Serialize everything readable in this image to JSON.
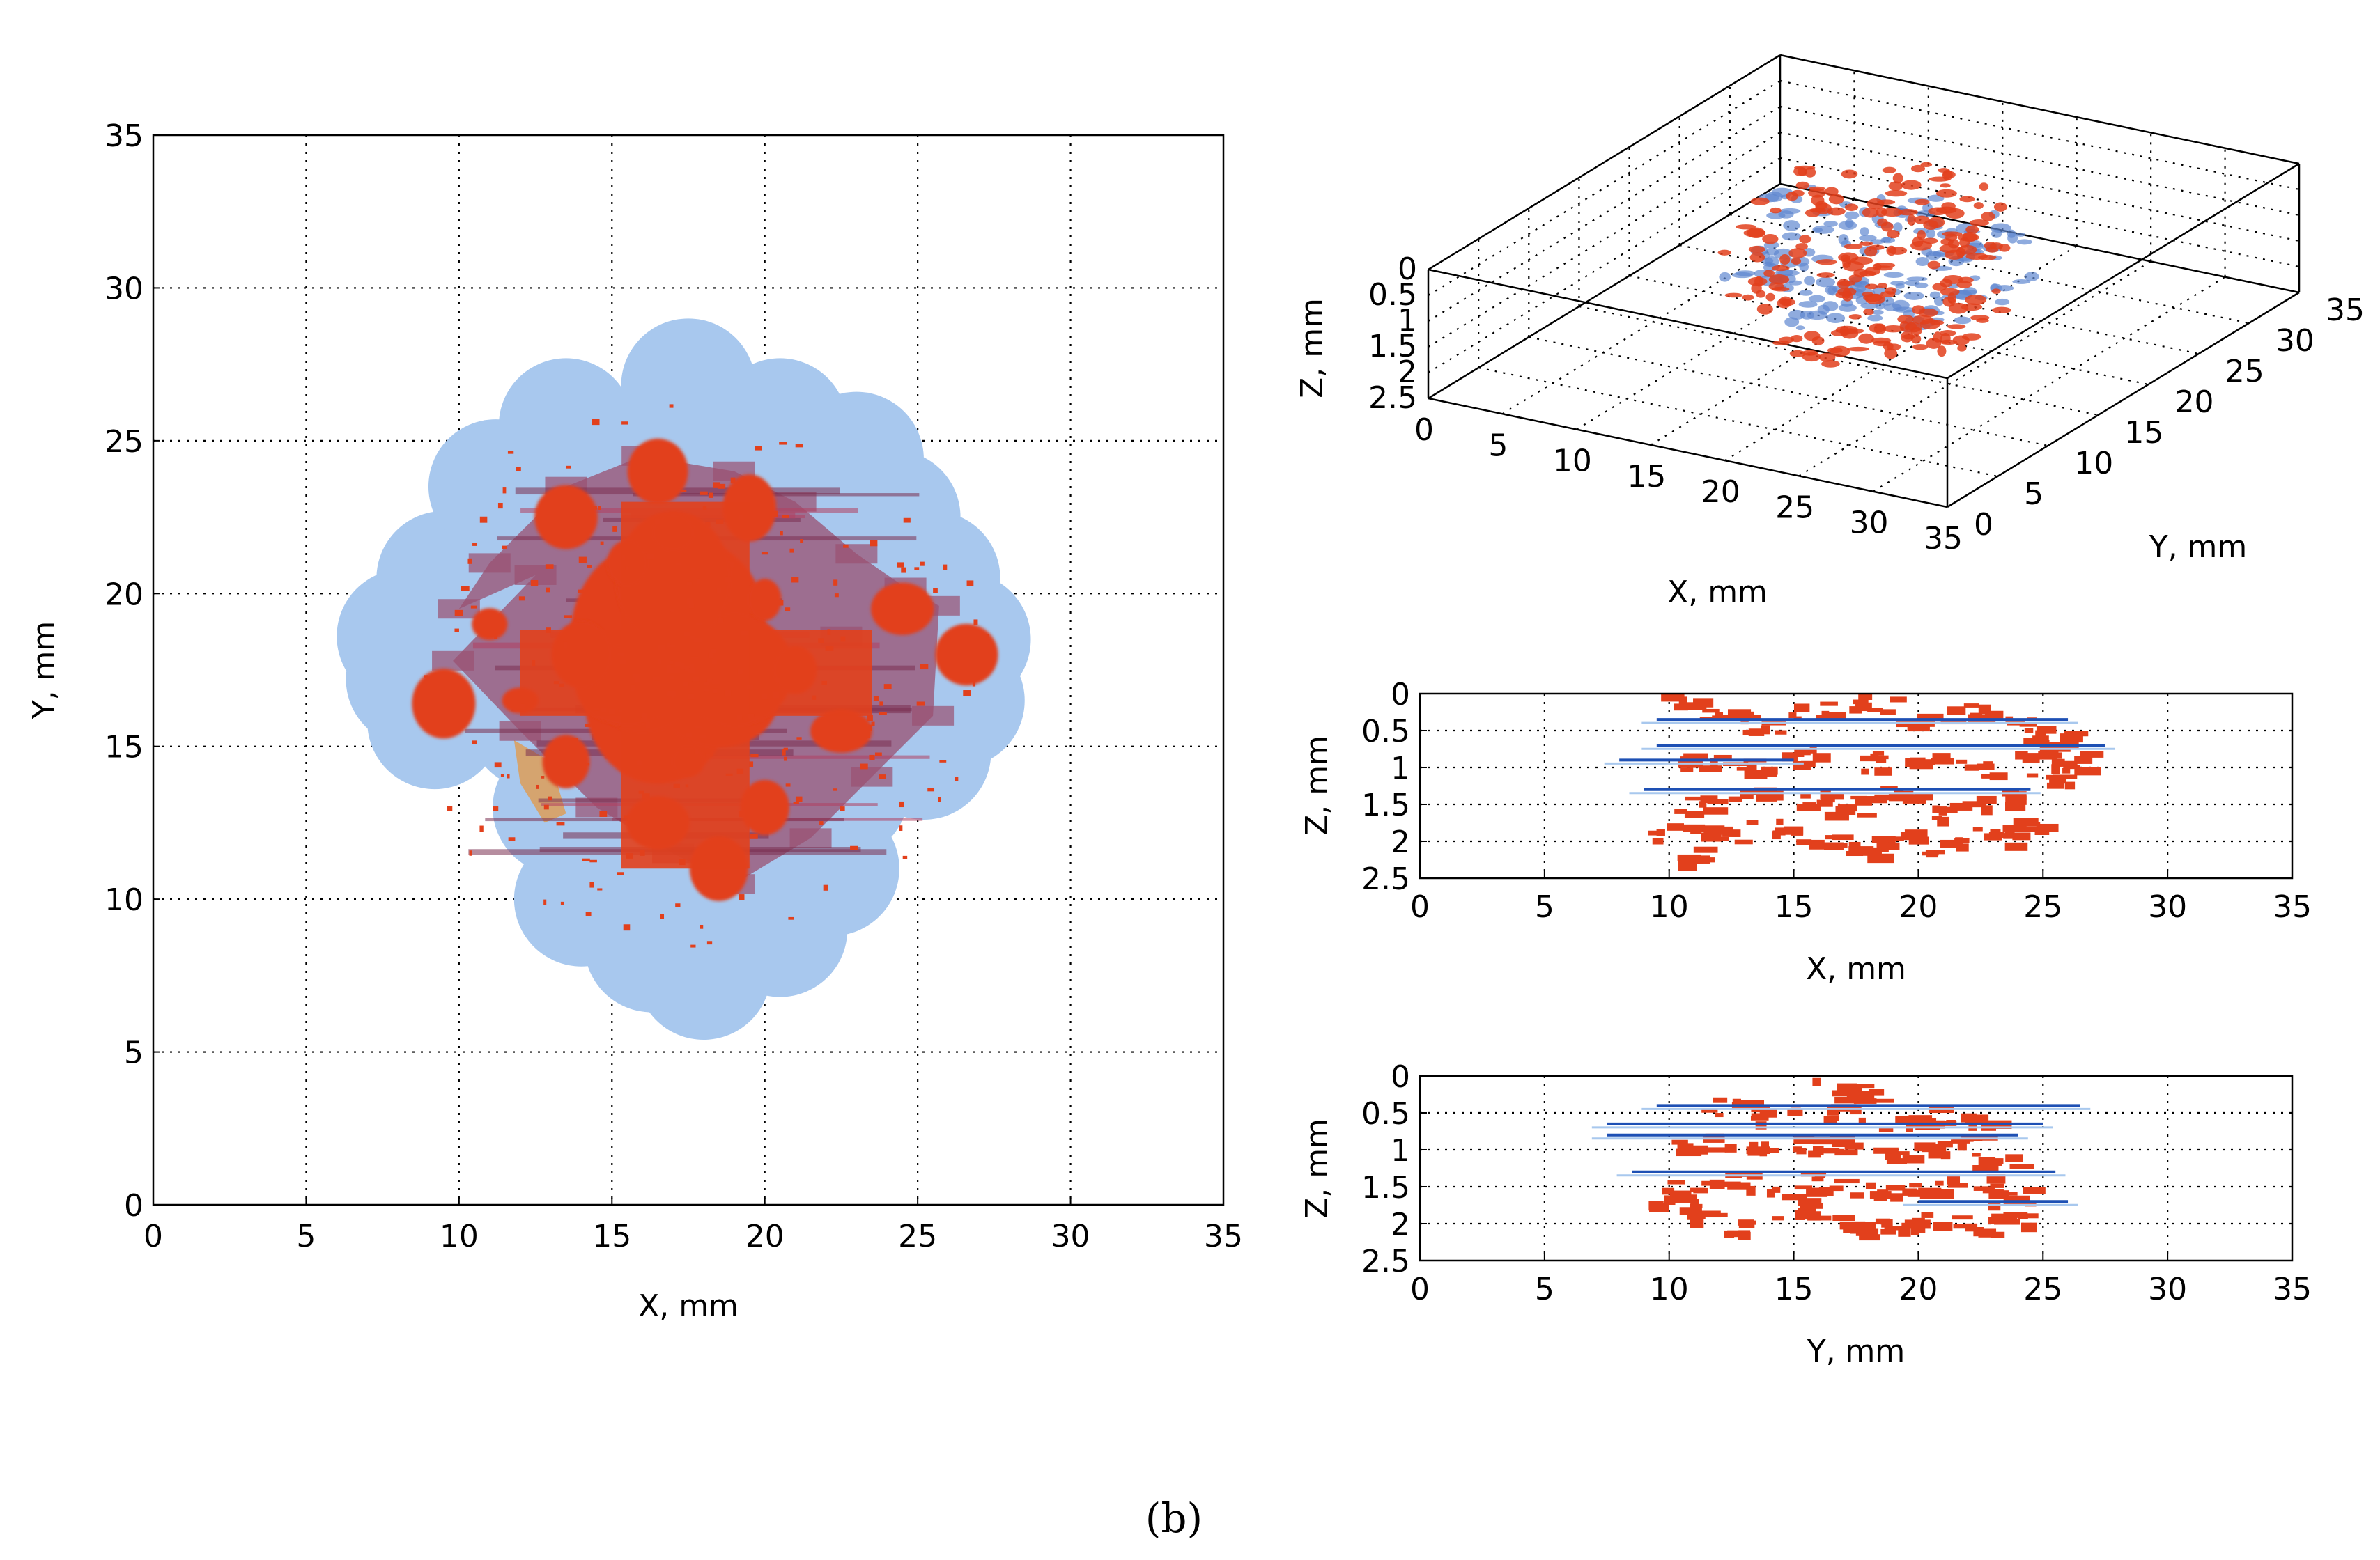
{
  "caption": "(b)",
  "colors": {
    "blue_light": "#a8c8ee",
    "blue_dark": "#1e50b4",
    "red": "#e2401c",
    "purple": "#9a5070",
    "tan": "#d9a060"
  },
  "chart_data": [
    {
      "type": "scatter",
      "view": "top (X–Y projection)",
      "xlabel": "X, mm",
      "ylabel": "Y, mm",
      "xlim": [
        0,
        35
      ],
      "ylim": [
        0,
        35
      ],
      "xticks": [
        "0",
        "5",
        "10",
        "15",
        "20",
        "25",
        "30",
        "35"
      ],
      "yticks": [
        "0",
        "5",
        "10",
        "15",
        "20",
        "25",
        "30",
        "35"
      ],
      "grid": true,
      "series": [
        {
          "color": "#a8c8ee",
          "points": [
            [
              8.2,
              18.6
            ],
            [
              9.5,
              20.5
            ],
            [
              11.2,
              23.5
            ],
            [
              13.5,
              25.5
            ],
            [
              17.5,
              26.8
            ],
            [
              20.5,
              25.5
            ],
            [
              23,
              24.4
            ],
            [
              24.2,
              22.5
            ],
            [
              25.5,
              20.5
            ],
            [
              26.5,
              18.5
            ],
            [
              26.3,
              16.5
            ],
            [
              25.2,
              14.8
            ],
            [
              22.5,
              13.5
            ],
            [
              22.2,
              11
            ],
            [
              20.5,
              9
            ],
            [
              18,
              7.6
            ],
            [
              16.3,
              8.5
            ],
            [
              14,
              10
            ],
            [
              13.3,
              13
            ],
            [
              12.5,
              15.8
            ],
            [
              9.2,
              15.8
            ],
            [
              8.5,
              17.2
            ],
            [
              17,
              17.5
            ],
            [
              19,
              21
            ],
            [
              15,
              20.5
            ]
          ]
        },
        {
          "color": "#9a5070",
          "points": [
            [
              10,
              19.5
            ],
            [
              11,
              21
            ],
            [
              13.5,
              23.5
            ],
            [
              16,
              24.5
            ],
            [
              19,
              24
            ],
            [
              21,
              23
            ],
            [
              23,
              21.3
            ],
            [
              24.6,
              20.2
            ],
            [
              25.7,
              19.6
            ],
            [
              25.5,
              16
            ],
            [
              23.5,
              14
            ],
            [
              21.5,
              12
            ],
            [
              19,
              10.5
            ],
            [
              17,
              11.5
            ],
            [
              14.5,
              13
            ],
            [
              12,
              15.5
            ],
            [
              9.8,
              17.8
            ],
            [
              12.5,
              20.6
            ],
            [
              22.5,
              18.6
            ]
          ]
        },
        {
          "color": "#d9a060",
          "points": [
            [
              11.8,
              15.2
            ],
            [
              12,
              13.8
            ],
            [
              12.8,
              12.5
            ],
            [
              13.5,
              12.8
            ],
            [
              13,
              14.5
            ]
          ]
        },
        {
          "color": "#e2401c",
          "points": [
            [
              17,
              17.5
            ],
            [
              18,
              18
            ],
            [
              16.5,
              16.5
            ],
            [
              17.5,
              19
            ],
            [
              18.5,
              16.5
            ],
            [
              16,
              18.5
            ],
            [
              19,
              17.5
            ],
            [
              15.5,
              17
            ],
            [
              17,
              20.5
            ],
            [
              17.5,
              14.5
            ],
            [
              14,
              18
            ],
            [
              21,
              17.5
            ],
            [
              12,
              16.5
            ],
            [
              9.5,
              16.4
            ],
            [
              24.5,
              19.5
            ],
            [
              26.6,
              18
            ],
            [
              17,
              22
            ],
            [
              16.5,
              24
            ],
            [
              13.5,
              22.5
            ],
            [
              19.5,
              22.8
            ],
            [
              16.5,
              12.5
            ],
            [
              18.5,
              11
            ],
            [
              20,
              13
            ],
            [
              13.5,
              14.5
            ],
            [
              22.5,
              15.5
            ],
            [
              11,
              19
            ],
            [
              15.5,
              21
            ],
            [
              20,
              19.8
            ]
          ]
        }
      ]
    },
    {
      "type": "scatter",
      "view": "3D",
      "xlabel": "X, mm",
      "ylabel": "Y, mm",
      "zlabel": "Z, mm",
      "xlim": [
        0,
        35
      ],
      "ylim": [
        0,
        35
      ],
      "zlim": [
        0,
        2.5
      ],
      "xticks": [
        "0",
        "5",
        "10",
        "15",
        "20",
        "25",
        "30",
        "35"
      ],
      "yticks": [
        "0",
        "5",
        "10",
        "15",
        "20",
        "25",
        "30",
        "35"
      ],
      "zticks": [
        "0",
        "0.5",
        "1",
        "1.5",
        "2",
        "2.5"
      ],
      "grid": true,
      "series": [
        {
          "color": "#6088d0",
          "points": [
            [
              11,
              21,
              0.7
            ],
            [
              13,
              23,
              1.3
            ],
            [
              16,
              25,
              0.9
            ],
            [
              19,
              24,
              1.3
            ],
            [
              22,
              22,
              0.7
            ],
            [
              24,
              20,
              1.3
            ],
            [
              22,
              15,
              0.9
            ],
            [
              18,
              13,
              1.3
            ],
            [
              14,
              14,
              0.7
            ],
            [
              12,
              17,
              1.3
            ],
            [
              20,
              19,
              1.9
            ],
            [
              15,
              20,
              1.9
            ]
          ]
        },
        {
          "color": "#e2401c",
          "points": [
            [
              12,
              20,
              0.3
            ],
            [
              14,
              22,
              0.5
            ],
            [
              17,
              24,
              0.2
            ],
            [
              20,
              23,
              0.4
            ],
            [
              23,
              21,
              0.6
            ],
            [
              24,
              18,
              1.2
            ],
            [
              21,
              15,
              1.8
            ],
            [
              17,
              13,
              2.0
            ],
            [
              13,
              15,
              1.6
            ],
            [
              11,
              18,
              1.0
            ],
            [
              16,
              19,
              1.4
            ],
            [
              19,
              18,
              2.0
            ],
            [
              15,
              22,
              1.8
            ],
            [
              22,
              19,
              2.1
            ],
            [
              18,
              21,
              0.8
            ]
          ]
        }
      ]
    },
    {
      "type": "scatter",
      "view": "side (X–Z projection)",
      "xlabel": "X, mm",
      "ylabel": "Z, mm",
      "xlim": [
        0,
        35
      ],
      "ylim": [
        0,
        2.5
      ],
      "xticks": [
        "0",
        "5",
        "10",
        "15",
        "20",
        "25",
        "30",
        "35"
      ],
      "yticks": [
        "0",
        "0.5",
        "1",
        "1.5",
        "2",
        "2.5"
      ],
      "grid": true,
      "series": [
        {
          "color": "#1e50b4",
          "lines": [
            [
              9.5,
              26,
              0.35
            ],
            [
              9.5,
              27.5,
              0.7
            ],
            [
              8,
              15,
              0.9
            ],
            [
              9,
              24.5,
              1.3
            ]
          ]
        },
        {
          "color": "#e2401c",
          "points": [
            [
              10.5,
              0.1
            ],
            [
              12,
              0.2
            ],
            [
              13.5,
              0.4
            ],
            [
              15.5,
              0.2
            ],
            [
              18,
              0.1
            ],
            [
              20,
              0.3
            ],
            [
              22,
              0.2
            ],
            [
              24,
              0.4
            ],
            [
              25,
              0.6
            ],
            [
              26,
              0.9
            ],
            [
              11,
              0.9
            ],
            [
              13,
              1.0
            ],
            [
              15,
              0.8
            ],
            [
              17.5,
              0.9
            ],
            [
              20,
              0.85
            ],
            [
              22,
              1.0
            ],
            [
              24,
              0.7
            ],
            [
              11,
              1.5
            ],
            [
              13,
              1.3
            ],
            [
              15.5,
              1.4
            ],
            [
              17,
              1.5
            ],
            [
              19,
              1.3
            ],
            [
              21,
              1.55
            ],
            [
              23,
              1.4
            ],
            [
              25,
              1.1
            ],
            [
              12,
              1.9
            ],
            [
              14,
              1.8
            ],
            [
              16,
              2.0
            ],
            [
              17.5,
              2.1
            ],
            [
              19,
              1.95
            ],
            [
              21,
              2.05
            ],
            [
              23,
              1.9
            ],
            [
              24,
              1.8
            ],
            [
              11,
              2.15
            ],
            [
              10,
              1.85
            ]
          ]
        }
      ]
    },
    {
      "type": "scatter",
      "view": "side (Y–Z projection)",
      "xlabel": "Y, mm",
      "ylabel": "Z, mm",
      "xlim": [
        0,
        35
      ],
      "ylim": [
        0,
        2.5
      ],
      "xticks": [
        "0",
        "5",
        "10",
        "15",
        "20",
        "25",
        "30",
        "35"
      ],
      "yticks": [
        "0",
        "0.5",
        "1",
        "1.5",
        "2",
        "2.5"
      ],
      "grid": true,
      "series": [
        {
          "color": "#1e50b4",
          "lines": [
            [
              9.5,
              26.5,
              0.4
            ],
            [
              7.5,
              25,
              0.65
            ],
            [
              7.5,
              24,
              0.8
            ],
            [
              8.5,
              25.5,
              1.3
            ],
            [
              20,
              26,
              1.7
            ]
          ]
        },
        {
          "color": "#e2401c",
          "points": [
            [
              12,
              0.4
            ],
            [
              14,
              0.5
            ],
            [
              16.5,
              0.1
            ],
            [
              17.5,
              0.2
            ],
            [
              17,
              0.5
            ],
            [
              19,
              0.6
            ],
            [
              21,
              0.5
            ],
            [
              22.5,
              0.7
            ],
            [
              11,
              0.9
            ],
            [
              13,
              1.0
            ],
            [
              15,
              0.9
            ],
            [
              17,
              0.9
            ],
            [
              19,
              1.0
            ],
            [
              21,
              0.95
            ],
            [
              23,
              1.1
            ],
            [
              10.5,
              1.5
            ],
            [
              12.5,
              1.4
            ],
            [
              14.5,
              1.6
            ],
            [
              16,
              1.4
            ],
            [
              18,
              1.5
            ],
            [
              20,
              1.5
            ],
            [
              22,
              1.45
            ],
            [
              23.5,
              1.6
            ],
            [
              11,
              1.9
            ],
            [
              13,
              2.0
            ],
            [
              15,
              1.85
            ],
            [
              17,
              2.0
            ],
            [
              18.5,
              2.05
            ],
            [
              20,
              1.95
            ],
            [
              22,
              2.0
            ],
            [
              23.5,
              1.9
            ],
            [
              10,
              1.7
            ]
          ]
        }
      ]
    }
  ]
}
